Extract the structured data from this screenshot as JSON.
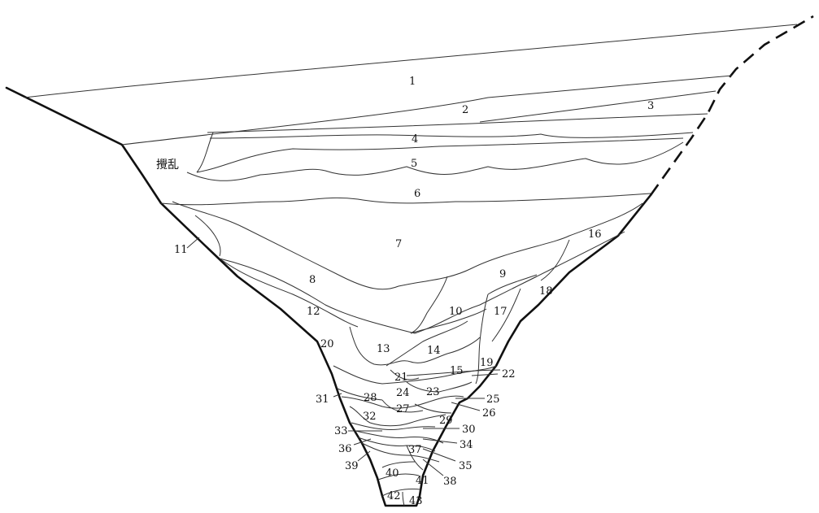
{
  "disturbed_label": "攪乱",
  "layer_labels": [
    "1",
    "2",
    "3",
    "4",
    "5",
    "6",
    "7",
    "8",
    "9",
    "10",
    "11",
    "12",
    "13",
    "14",
    "15",
    "16",
    "17",
    "18",
    "19",
    "20",
    "21",
    "22",
    "23",
    "24",
    "25",
    "26",
    "27",
    "28",
    "29",
    "30",
    "31",
    "32",
    "33",
    "34",
    "35",
    "36",
    "37",
    "38",
    "39",
    "40",
    "41",
    "42",
    "43"
  ]
}
